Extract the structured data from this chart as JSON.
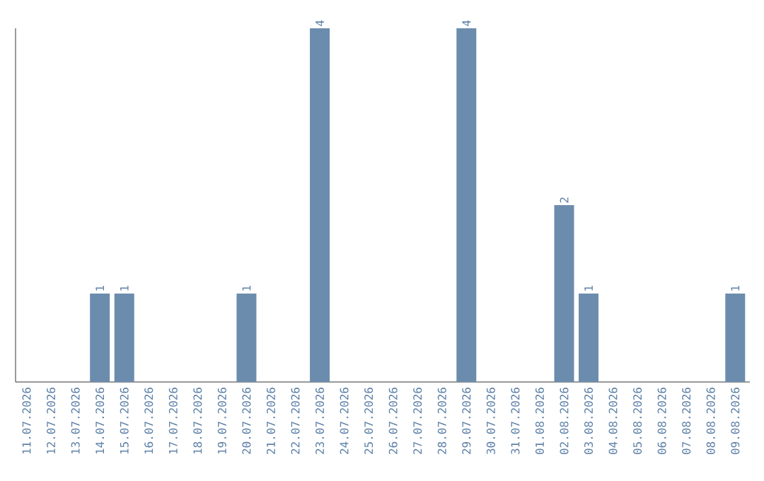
{
  "chart_data": {
    "type": "bar",
    "categories": [
      "11.07.2026",
      "12.07.2026",
      "13.07.2026",
      "14.07.2026",
      "15.07.2026",
      "16.07.2026",
      "17.07.2026",
      "18.07.2026",
      "19.07.2026",
      "20.07.2026",
      "21.07.2026",
      "22.07.2026",
      "23.07.2026",
      "24.07.2026",
      "25.07.2026",
      "26.07.2026",
      "27.07.2026",
      "28.07.2026",
      "29.07.2026",
      "30.07.2026",
      "31.07.2026",
      "01.08.2026",
      "02.08.2026",
      "03.08.2026",
      "04.08.2026",
      "05.08.2026",
      "06.08.2026",
      "07.08.2026",
      "08.08.2026",
      "09.08.2026"
    ],
    "values": [
      0,
      0,
      0,
      1,
      1,
      0,
      0,
      0,
      0,
      1,
      0,
      0,
      4,
      0,
      0,
      0,
      0,
      0,
      4,
      0,
      0,
      0,
      2,
      1,
      0,
      0,
      0,
      0,
      0,
      1
    ],
    "value_labels": [
      null,
      null,
      null,
      "1",
      "1",
      null,
      null,
      null,
      null,
      "1",
      null,
      null,
      "4",
      null,
      null,
      null,
      null,
      null,
      "4",
      null,
      null,
      null,
      "2",
      "1",
      null,
      null,
      null,
      null,
      null,
      "1"
    ],
    "color": "#6b8cad",
    "tick_labels": "x"
  }
}
